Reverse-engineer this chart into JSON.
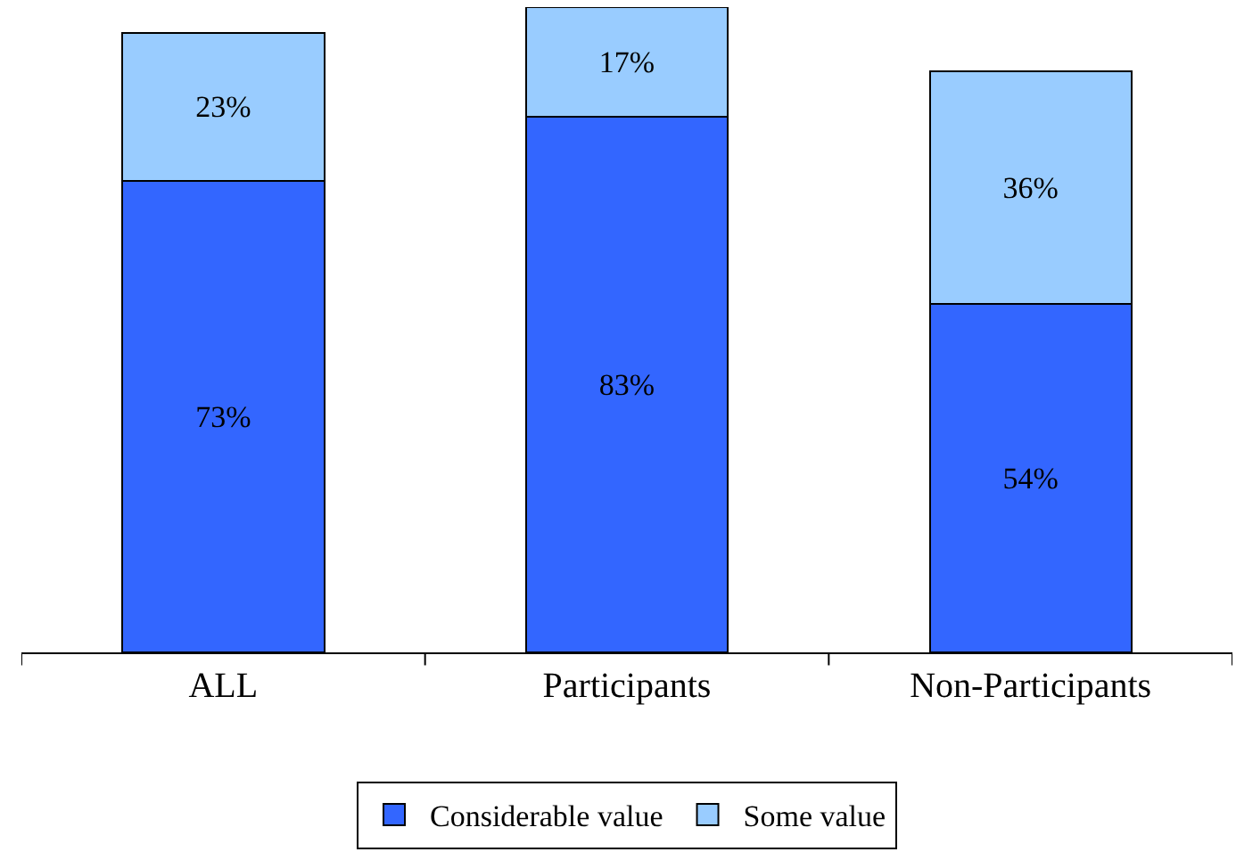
{
  "chart_data": {
    "type": "bar",
    "stacked": true,
    "data_labels": true,
    "legend": "bottom",
    "categories": [
      "ALL",
      "Participants",
      "Non-Participants"
    ],
    "series": [
      {
        "name": "Considerable value",
        "color": "#3366ff",
        "values": [
          73,
          83,
          54
        ],
        "value_labels": [
          "73%",
          "83%",
          "54%"
        ]
      },
      {
        "name": "Some value",
        "color": "#99ccff",
        "values": [
          23,
          17,
          36
        ],
        "value_labels": [
          "23%",
          "17%",
          "36%"
        ]
      }
    ]
  }
}
